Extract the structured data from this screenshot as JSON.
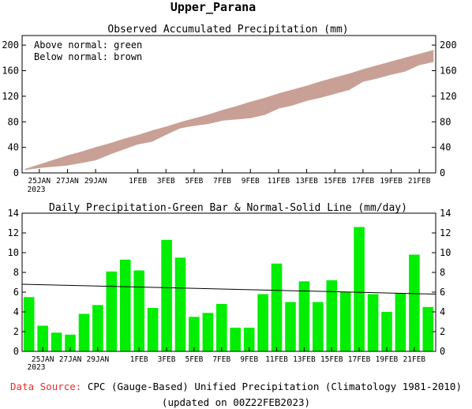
{
  "page_title": "Upper_Parana",
  "footer": {
    "source_label": "Data Source:",
    "source_text": " CPC (Gauge-Based) Unified Precipitation (Climatology 1981-2010)",
    "updated": "(updated on 00Z22FEB2023)",
    "source_label_color": "#e0302a"
  },
  "colors": {
    "band": "#c9a096",
    "bars": "#00ee00",
    "normal_line": "#000000"
  },
  "chart_data": [
    {
      "type": "area",
      "title": "Observed Accumulated Precipitation (mm)",
      "legend": [
        "Above normal: green",
        "Below normal: brown"
      ],
      "legend_position": "top-left",
      "x_dates": [
        "24JAN",
        "25JAN",
        "26JAN",
        "27JAN",
        "28JAN",
        "29JAN",
        "30JAN",
        "31JAN",
        "1FEB",
        "2FEB",
        "3FEB",
        "4FEB",
        "5FEB",
        "6FEB",
        "7FEB",
        "8FEB",
        "9FEB",
        "10FEB",
        "11FEB",
        "12FEB",
        "13FEB",
        "14FEB",
        "15FEB",
        "16FEB",
        "17FEB",
        "18FEB",
        "19FEB",
        "20FEB",
        "21FEB",
        "22FEB"
      ],
      "xtick_labels": [
        "25JAN",
        "27JAN",
        "29JAN",
        "1FEB",
        "3FEB",
        "5FEB",
        "7FEB",
        "9FEB",
        "11FEB",
        "13FEB",
        "15FEB",
        "17FEB",
        "19FEB",
        "21FEB"
      ],
      "xtick_index": [
        1,
        3,
        5,
        8,
        10,
        12,
        14,
        16,
        18,
        20,
        22,
        24,
        26,
        28
      ],
      "year_label": "2023",
      "yticks": [
        0,
        40,
        80,
        120,
        160,
        200
      ],
      "ylim": [
        0,
        215
      ],
      "series": [
        {
          "name": "Normal",
          "values": [
            6,
            13,
            20,
            27,
            33,
            40,
            46,
            53,
            59,
            66,
            72,
            79,
            85,
            91,
            98,
            104,
            111,
            117,
            124,
            130,
            136,
            143,
            149,
            155,
            162,
            168,
            174,
            180,
            186,
            192
          ]
        },
        {
          "name": "Observed",
          "values": [
            5,
            8,
            10,
            12,
            16,
            20,
            29,
            37,
            45,
            49,
            60,
            70,
            74,
            77,
            82,
            84,
            86,
            91,
            101,
            106,
            113,
            118,
            124,
            130,
            143,
            148,
            154,
            159,
            169,
            174
          ]
        }
      ]
    },
    {
      "type": "bar",
      "title": "Daily Precipitation-Green Bar & Normal-Solid Line (mm/day)",
      "categories": [
        "24JAN",
        "25JAN",
        "26JAN",
        "27JAN",
        "28JAN",
        "29JAN",
        "30JAN",
        "31JAN",
        "1FEB",
        "2FEB",
        "3FEB",
        "4FEB",
        "5FEB",
        "6FEB",
        "7FEB",
        "8FEB",
        "9FEB",
        "10FEB",
        "11FEB",
        "12FEB",
        "13FEB",
        "14FEB",
        "15FEB",
        "16FEB",
        "17FEB",
        "18FEB",
        "19FEB",
        "20FEB",
        "21FEB",
        "22FEB"
      ],
      "xtick_labels": [
        "25JAN",
        "27JAN",
        "29JAN",
        "1FEB",
        "3FEB",
        "5FEB",
        "7FEB",
        "9FEB",
        "11FEB",
        "13FEB",
        "15FEB",
        "17FEB",
        "19FEB",
        "21FEB"
      ],
      "xtick_index": [
        1,
        3,
        5,
        8,
        10,
        12,
        14,
        16,
        18,
        20,
        22,
        24,
        26,
        28
      ],
      "year_label": "2023",
      "yticks": [
        0,
        2,
        4,
        6,
        8,
        10,
        12,
        14
      ],
      "ylim": [
        0,
        14
      ],
      "values": [
        5.5,
        2.6,
        1.9,
        1.7,
        3.8,
        4.7,
        8.1,
        9.3,
        8.2,
        4.4,
        11.3,
        9.5,
        3.5,
        3.9,
        4.8,
        2.4,
        2.4,
        5.8,
        8.9,
        5.0,
        7.1,
        5.0,
        7.2,
        6.0,
        12.6,
        5.8,
        4.0,
        5.9,
        9.8,
        4.5
      ],
      "normal_line": {
        "start": 6.8,
        "end": 5.8
      }
    }
  ]
}
